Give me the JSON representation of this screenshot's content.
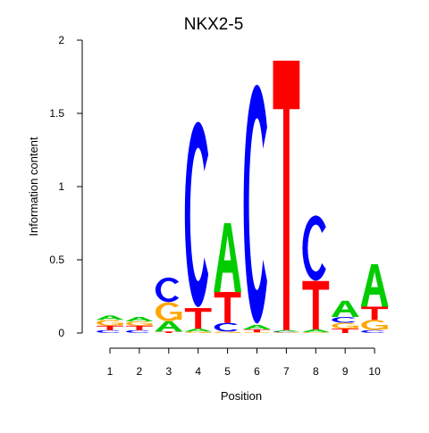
{
  "chart_data": {
    "type": "sequence-logo",
    "title": "NKX2-5",
    "xlabel": "Position",
    "ylabel": "Information content",
    "ylim": [
      0,
      2
    ],
    "yticks": [
      0,
      0.5,
      1,
      1.5,
      2
    ],
    "ytick_labels": [
      "0",
      "0.5",
      "1",
      "1.5",
      "2"
    ],
    "positions": [
      "1",
      "2",
      "3",
      "4",
      "5",
      "6",
      "7",
      "8",
      "9",
      "10"
    ],
    "colors": {
      "A": "#00cc00",
      "C": "#0000ff",
      "G": "#ffa500",
      "T": "#ff0000"
    },
    "stacks": [
      [
        {
          "letter": "C",
          "height": 0.02
        },
        {
          "letter": "T",
          "height": 0.03
        },
        {
          "letter": "G",
          "height": 0.04
        },
        {
          "letter": "A",
          "height": 0.03
        }
      ],
      [
        {
          "letter": "C",
          "height": 0.02
        },
        {
          "letter": "T",
          "height": 0.03
        },
        {
          "letter": "G",
          "height": 0.03
        },
        {
          "letter": "A",
          "height": 0.03
        }
      ],
      [
        {
          "letter": "T",
          "height": 0.01
        },
        {
          "letter": "A",
          "height": 0.07
        },
        {
          "letter": "G",
          "height": 0.13
        },
        {
          "letter": "C",
          "height": 0.17
        }
      ],
      [
        {
          "letter": "G",
          "height": 0.01
        },
        {
          "letter": "A",
          "height": 0.02
        },
        {
          "letter": "T",
          "height": 0.14
        },
        {
          "letter": "C",
          "height": 1.28
        }
      ],
      [
        {
          "letter": "G",
          "height": 0.01
        },
        {
          "letter": "C",
          "height": 0.06
        },
        {
          "letter": "T",
          "height": 0.21
        },
        {
          "letter": "A",
          "height": 0.47
        }
      ],
      [
        {
          "letter": "G",
          "height": 0.005
        },
        {
          "letter": "T",
          "height": 0.02
        },
        {
          "letter": "A",
          "height": 0.03
        },
        {
          "letter": "C",
          "height": 1.65
        }
      ],
      [
        {
          "letter": "G",
          "height": 0.005
        },
        {
          "letter": "C",
          "height": 0.005
        },
        {
          "letter": "A",
          "height": 0.01
        },
        {
          "letter": "T",
          "height": 1.84
        }
      ],
      [
        {
          "letter": "G",
          "height": 0.005
        },
        {
          "letter": "A",
          "height": 0.02
        },
        {
          "letter": "T",
          "height": 0.33
        },
        {
          "letter": "C",
          "height": 0.45
        }
      ],
      [
        {
          "letter": "T",
          "height": 0.03
        },
        {
          "letter": "G",
          "height": 0.04
        },
        {
          "letter": "C",
          "height": 0.04
        },
        {
          "letter": "A",
          "height": 0.11
        }
      ],
      [
        {
          "letter": "C",
          "height": 0.02
        },
        {
          "letter": "G",
          "height": 0.07
        },
        {
          "letter": "T",
          "height": 0.09
        },
        {
          "letter": "A",
          "height": 0.29
        }
      ]
    ]
  }
}
